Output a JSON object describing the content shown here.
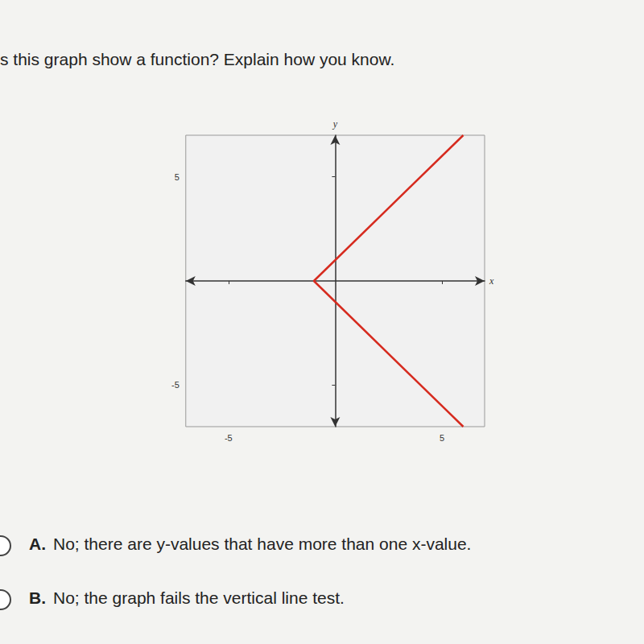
{
  "question": "s this graph show a function? Explain how you know.",
  "chart_data": {
    "type": "line",
    "x": [
      6,
      -1,
      6
    ],
    "values": [
      7,
      0,
      -7
    ],
    "color": "#d62b1f",
    "xlim": [
      -7,
      7
    ],
    "ylim": [
      -7,
      7
    ],
    "xticks": [
      -5,
      5
    ],
    "yticks": [
      -5,
      5
    ],
    "x_label": "x",
    "y_label": "y",
    "grid": false
  },
  "choices": [
    {
      "label": "A.",
      "text": "No; there are y-values that have more than one x-value."
    },
    {
      "label": "B.",
      "text": "No; the graph fails the vertical line test."
    }
  ]
}
